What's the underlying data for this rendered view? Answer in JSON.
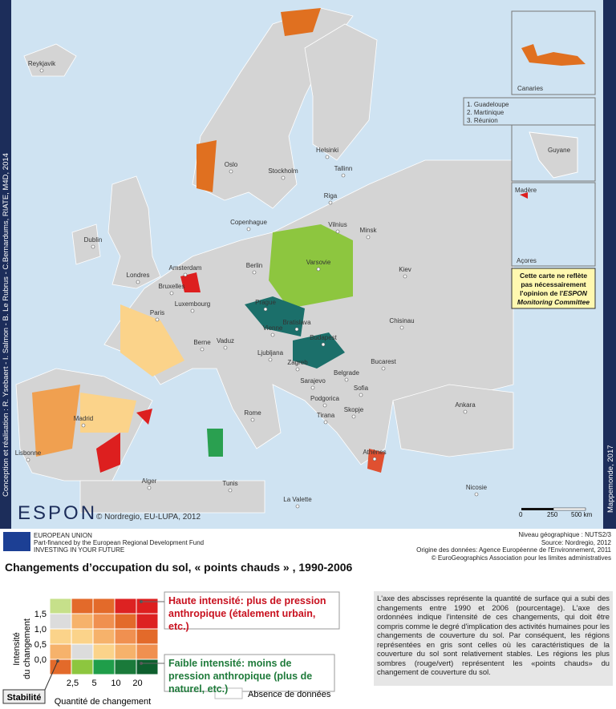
{
  "map": {
    "cities": [
      "Reykjavik",
      "Dublin",
      "Londres",
      "Amsterdam",
      "Bruxelles",
      "Luxembourg",
      "Paris",
      "Berne",
      "Vaduz",
      "Madrid",
      "Lisbonne",
      "Oslo",
      "Stockholm",
      "Helsinki",
      "Tallinn",
      "Riga",
      "Copenhague",
      "Vilnius",
      "Minsk",
      "Berlin",
      "Varsovie",
      "Kiev",
      "Prague",
      "Vienne",
      "Bratislava",
      "Budapest",
      "Ljubljana",
      "Zagreb",
      "Chisinau",
      "Bucarest",
      "Belgrade",
      "Sarajevo",
      "Podgorica",
      "Sofia",
      "Skopje",
      "Tirana",
      "Rome",
      "Athènes",
      "Ankara",
      "Nicosie",
      "Alger",
      "Tunis",
      "La Valette"
    ],
    "insets": {
      "canaries": "Canaries",
      "dom": [
        "1. Guadeloupe",
        "2. Martinique",
        "3. Réunion"
      ],
      "guyane": "Guyane",
      "madere": "Madère",
      "acores": "Açores"
    },
    "disclaimer": [
      "Cette carte ne reflète",
      "pas nécessairement",
      "l'opinion de l'",
      "ESPON",
      "Monitoring Committee"
    ],
    "copyright": "© Nordregio, EU-LUPA, 2012",
    "logo": "ESPON",
    "credit_left": "Conception et réalisation : R. Ysebaert - I. Salmon - B. Le Rubrus - C.Bernardums, RIATE, M4D, 2014",
    "credit_right": "Mappemonde, 2017",
    "scale": [
      "0",
      "250",
      "500 km"
    ]
  },
  "footer": {
    "eu": [
      "EUROPEAN UNION",
      "Part-financed by the European Regional Development Fund",
      "INVESTING IN YOUR FUTURE"
    ],
    "sources": [
      "Niveau géographique : NUTS2/3",
      "Source: Nordregio, 2012",
      "Origine des données: Agence Européenne de l'Environnement, 2011",
      "© EuroGeographics Association pour les limites administratives"
    ]
  },
  "title": "Changements d’occupation du sol, « points chauds » , 1990-2006",
  "legend": {
    "y_label": [
      "Intensité",
      "du changement"
    ],
    "y_ticks": [
      "0,0",
      "0,5",
      "1,0",
      "1,5"
    ],
    "x_ticks": [
      "2,5",
      "5",
      "10",
      "20"
    ],
    "x_label": "Quantité de changement",
    "stability": "Stabilité",
    "high": "Haute intensité: plus de pression anthropique (étalement urbain, etc.)",
    "low": "Faible intensité: moins de pression anthropique (plus de naturel, etc.)",
    "no_data": "Absence de données"
  },
  "description": "L'axe des abscisses représente la quantité de surface qui a subi des changements entre 1990 et 2006 (pourcentage). L'axe des ordonnées indique l'intensité de ces changements, qui doit être compris comme le degré d'implication des activités humaines pour les changements de couverture du sol. Par conséquent, les régions représentées en gris sont celles où les caractéristiques de la couverture du sol sont relativement stables. Les régions les plus sombres (rouge/vert) représentent les «points chauds» du changement de couverture du sol."
}
